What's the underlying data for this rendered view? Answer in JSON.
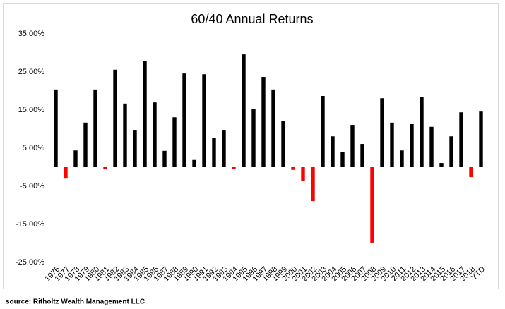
{
  "chart_data": {
    "type": "bar",
    "title": "60/40 Annual Returns",
    "categories": [
      "1976",
      "1977",
      "1978",
      "1979",
      "1980",
      "1981",
      "1982",
      "1983",
      "1984",
      "1985",
      "1986",
      "1987",
      "1988",
      "1989",
      "1990",
      "1991",
      "1992",
      "1993",
      "1994",
      "1995",
      "1996",
      "1997",
      "1998",
      "1999",
      "2000",
      "2001",
      "2002",
      "2003",
      "2004",
      "2005",
      "2006",
      "2007",
      "2008",
      "2009",
      "2010",
      "2011",
      "2012",
      "2013",
      "2014",
      "2015",
      "2016",
      "2017",
      "2018",
      "YTD"
    ],
    "values": [
      20.4,
      -3.0,
      4.4,
      11.7,
      20.4,
      -0.4,
      25.6,
      16.7,
      9.8,
      27.8,
      17.0,
      4.3,
      13.1,
      24.6,
      1.9,
      24.4,
      7.6,
      9.8,
      -0.4,
      29.6,
      15.2,
      23.7,
      20.4,
      12.2,
      -0.7,
      -3.7,
      -8.9,
      18.7,
      8.1,
      3.9,
      11.1,
      6.1,
      -19.8,
      18.1,
      11.7,
      4.4,
      11.3,
      18.5,
      10.6,
      1.1,
      8.1,
      14.4,
      -2.6,
      14.6
    ],
    "color": "#000000",
    "negative_color": "#ff0000",
    "ylim": [
      -25,
      35
    ],
    "yticks": [
      {
        "value": -25,
        "label": "-25.00%"
      },
      {
        "value": -15,
        "label": "-15.00%"
      },
      {
        "value": -5,
        "label": "-5.00%"
      },
      {
        "value": 5,
        "label": "5.00%"
      },
      {
        "value": 15,
        "label": "15.00%"
      },
      {
        "value": 25,
        "label": "25.00%"
      },
      {
        "value": 35,
        "label": "35.00%"
      }
    ],
    "grid": false,
    "source": "source: Ritholtz Wealth Management LLC"
  }
}
